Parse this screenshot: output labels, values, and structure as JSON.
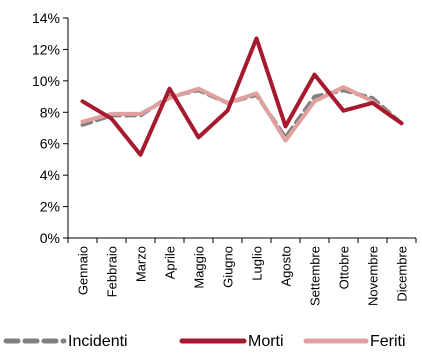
{
  "chart_data": {
    "type": "line",
    "categories": [
      "Gennaio",
      "Febbraio",
      "Marzo",
      "Aprile",
      "Maggio",
      "Giugno",
      "Luglio",
      "Agosto",
      "Settembre",
      "Ottobre",
      "Novembre",
      "Dicembre"
    ],
    "y_unit": "%",
    "ylim": [
      0,
      14
    ],
    "yticks": [
      "0%",
      "2%",
      "4%",
      "6%",
      "8%",
      "10%",
      "12%",
      "14%"
    ],
    "grid": false,
    "legend_position": "bottom",
    "series": [
      {
        "name": "Incidenti",
        "style": "dashed",
        "color": "#808080",
        "values": [
          7.2,
          7.8,
          7.8,
          9.0,
          9.4,
          8.6,
          9.1,
          6.4,
          9.0,
          9.4,
          8.9,
          7.3
        ]
      },
      {
        "name": "Morti",
        "style": "solid",
        "color": "#A6192E",
        "values": [
          8.7,
          7.6,
          5.3,
          9.5,
          6.4,
          8.1,
          12.7,
          7.1,
          10.4,
          8.1,
          8.6,
          7.3
        ]
      },
      {
        "name": "Feriti",
        "style": "solid",
        "color": "#E0A0A0",
        "values": [
          7.4,
          7.9,
          7.9,
          8.9,
          9.5,
          8.6,
          9.2,
          6.2,
          8.7,
          9.6,
          8.7,
          7.3
        ]
      }
    ]
  }
}
